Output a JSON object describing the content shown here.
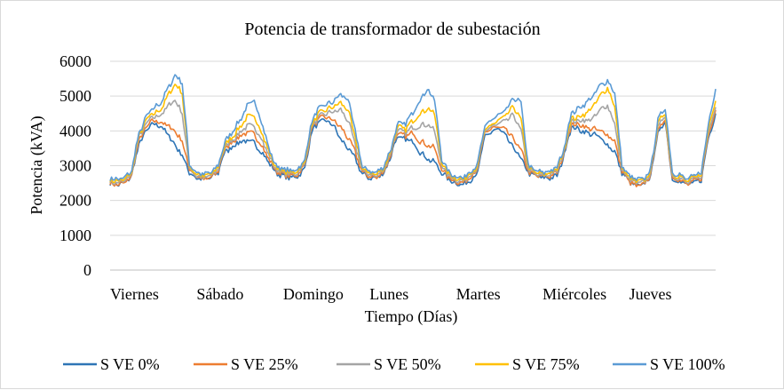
{
  "chart_data": {
    "type": "line",
    "title": "Potencia de transformador de subestación",
    "xlabel": "Tiempo (Días)",
    "ylabel": "Potencia (kVA)",
    "ylim": [
      0,
      6000
    ],
    "yticks": [
      0,
      1000,
      2000,
      3000,
      4000,
      5000,
      6000
    ],
    "x_unit": "hora",
    "xlim": [
      0,
      168
    ],
    "categories": [
      "Viernes",
      "Sábado",
      "Domingo",
      "Lunes",
      "Martes",
      "Miércoles",
      "Jueves"
    ],
    "grid": true,
    "legend_position": "bottom",
    "x": [
      0,
      2,
      4,
      6,
      7,
      8,
      10,
      12,
      14,
      16,
      18,
      20,
      22,
      24,
      26,
      28,
      30,
      31,
      32,
      34,
      36,
      38,
      40,
      42,
      44,
      46,
      48,
      50,
      52,
      54,
      55,
      56,
      58,
      60,
      62,
      64,
      66,
      68,
      70,
      72,
      74,
      76,
      78,
      79,
      80,
      82,
      84,
      86,
      88,
      90,
      92,
      94,
      96,
      98,
      100,
      102,
      103,
      104,
      106,
      108,
      110,
      112,
      114,
      116,
      118,
      120,
      122,
      124,
      126,
      127,
      128,
      130,
      132,
      134,
      136,
      138,
      140,
      142,
      144,
      146,
      148,
      150,
      151,
      152,
      154,
      156,
      158,
      160,
      162,
      164,
      166,
      168
    ],
    "series": [
      {
        "name": "S VE 0%",
        "color": "#2e75b6",
        "values": [
          2500,
          2450,
          2500,
          2700,
          3200,
          3600,
          4000,
          4200,
          4150,
          3900,
          3600,
          3300,
          2800,
          2650,
          2600,
          2650,
          2800,
          3200,
          3400,
          3550,
          3700,
          3700,
          3650,
          3400,
          3100,
          2800,
          2700,
          2650,
          2700,
          2900,
          3500,
          4000,
          4250,
          4300,
          4150,
          3750,
          3500,
          3200,
          2750,
          2650,
          2650,
          2800,
          3300,
          3700,
          3800,
          3750,
          3700,
          3400,
          3200,
          3100,
          2800,
          2600,
          2500,
          2450,
          2600,
          2800,
          3400,
          3800,
          4000,
          4050,
          3800,
          3500,
          3200,
          2800,
          2700,
          2650,
          2650,
          2700,
          3300,
          3800,
          4100,
          4050,
          3950,
          3900,
          3800,
          3600,
          3400,
          2800,
          2550,
          2400,
          2450,
          2700,
          3400,
          3900,
          4300,
          2600,
          2550,
          2450,
          2500,
          2600,
          3800,
          4500
        ]
      },
      {
        "name": "S VE 25%",
        "color": "#ed7d31",
        "values": [
          2500,
          2450,
          2500,
          2700,
          3300,
          3700,
          4100,
          4300,
          4250,
          4150,
          4000,
          3700,
          2900,
          2700,
          2600,
          2650,
          2850,
          3250,
          3500,
          3700,
          3850,
          3950,
          3900,
          3600,
          3200,
          2850,
          2750,
          2700,
          2750,
          3000,
          3600,
          4100,
          4350,
          4400,
          4300,
          4100,
          3800,
          3400,
          2800,
          2700,
          2650,
          2850,
          3350,
          3800,
          3900,
          3850,
          3950,
          3700,
          3600,
          3500,
          2900,
          2650,
          2550,
          2500,
          2700,
          2900,
          3500,
          3900,
          4100,
          4100,
          4000,
          3750,
          3450,
          2850,
          2700,
          2700,
          2700,
          2800,
          3350,
          3900,
          4150,
          4200,
          4100,
          4050,
          4000,
          3900,
          3700,
          2850,
          2550,
          2400,
          2450,
          2750,
          3450,
          4000,
          4350,
          2650,
          2600,
          2450,
          2550,
          2650,
          3900,
          4600
        ]
      },
      {
        "name": "S VE 50%",
        "color": "#a5a5a5",
        "values": [
          2550,
          2500,
          2550,
          2750,
          3350,
          3800,
          4200,
          4400,
          4450,
          4700,
          4900,
          4500,
          2950,
          2700,
          2650,
          2700,
          2900,
          3300,
          3550,
          3750,
          3950,
          4150,
          4100,
          3800,
          3300,
          2900,
          2800,
          2750,
          2800,
          3050,
          3650,
          4150,
          4400,
          4500,
          4550,
          4600,
          4300,
          3600,
          2850,
          2750,
          2700,
          2900,
          3400,
          3850,
          4000,
          3950,
          4100,
          4150,
          4200,
          4000,
          3000,
          2700,
          2600,
          2550,
          2750,
          2950,
          3550,
          3950,
          4150,
          4200,
          4300,
          4450,
          4000,
          2900,
          2750,
          2700,
          2750,
          2850,
          3400,
          3950,
          4250,
          4300,
          4300,
          4350,
          4600,
          4750,
          4200,
          2900,
          2600,
          2500,
          2500,
          2800,
          3500,
          4100,
          4450,
          2700,
          2650,
          2500,
          2600,
          2700,
          4000,
          4700
        ]
      },
      {
        "name": "S VE 75%",
        "color": "#ffc000",
        "values": [
          2600,
          2550,
          2600,
          2800,
          3400,
          3850,
          4300,
          4500,
          4600,
          5000,
          5350,
          5100,
          3000,
          2750,
          2700,
          2750,
          2950,
          3350,
          3600,
          3850,
          4100,
          4400,
          4400,
          4000,
          3400,
          2950,
          2850,
          2800,
          2850,
          3100,
          3700,
          4200,
          4500,
          4600,
          4700,
          4800,
          4600,
          3800,
          2900,
          2800,
          2750,
          2950,
          3450,
          3900,
          4100,
          4050,
          4300,
          4500,
          4650,
          4500,
          3100,
          2750,
          2650,
          2600,
          2800,
          3000,
          3600,
          4000,
          4200,
          4300,
          4450,
          4700,
          4300,
          2950,
          2800,
          2750,
          2800,
          2900,
          3450,
          4000,
          4350,
          4400,
          4500,
          4700,
          5000,
          5250,
          4700,
          2950,
          2650,
          2550,
          2550,
          2850,
          3550,
          4200,
          4550,
          2750,
          2700,
          2550,
          2650,
          2750,
          4100,
          4900
        ]
      },
      {
        "name": "S VE 100%",
        "color": "#5b9bd5",
        "values": [
          2650,
          2600,
          2650,
          2850,
          3450,
          3900,
          4400,
          4650,
          4800,
          5200,
          5600,
          5400,
          3050,
          2800,
          2750,
          2800,
          3000,
          3400,
          3700,
          4000,
          4300,
          4700,
          4850,
          4300,
          3500,
          3000,
          2900,
          2850,
          2900,
          3150,
          3750,
          4300,
          4650,
          4750,
          4850,
          5050,
          4900,
          4000,
          2950,
          2850,
          2800,
          3000,
          3500,
          3950,
          4200,
          4200,
          4550,
          4900,
          5200,
          4900,
          3200,
          2800,
          2700,
          2650,
          2850,
          3050,
          3650,
          4100,
          4350,
          4450,
          4600,
          4950,
          4800,
          3000,
          2850,
          2800,
          2850,
          2950,
          3500,
          4100,
          4500,
          4650,
          4800,
          5000,
          5300,
          5450,
          5100,
          3000,
          2700,
          2600,
          2600,
          2900,
          3600,
          4300,
          4700,
          2800,
          2750,
          2600,
          2700,
          2800,
          4200,
          5250
        ]
      }
    ]
  }
}
